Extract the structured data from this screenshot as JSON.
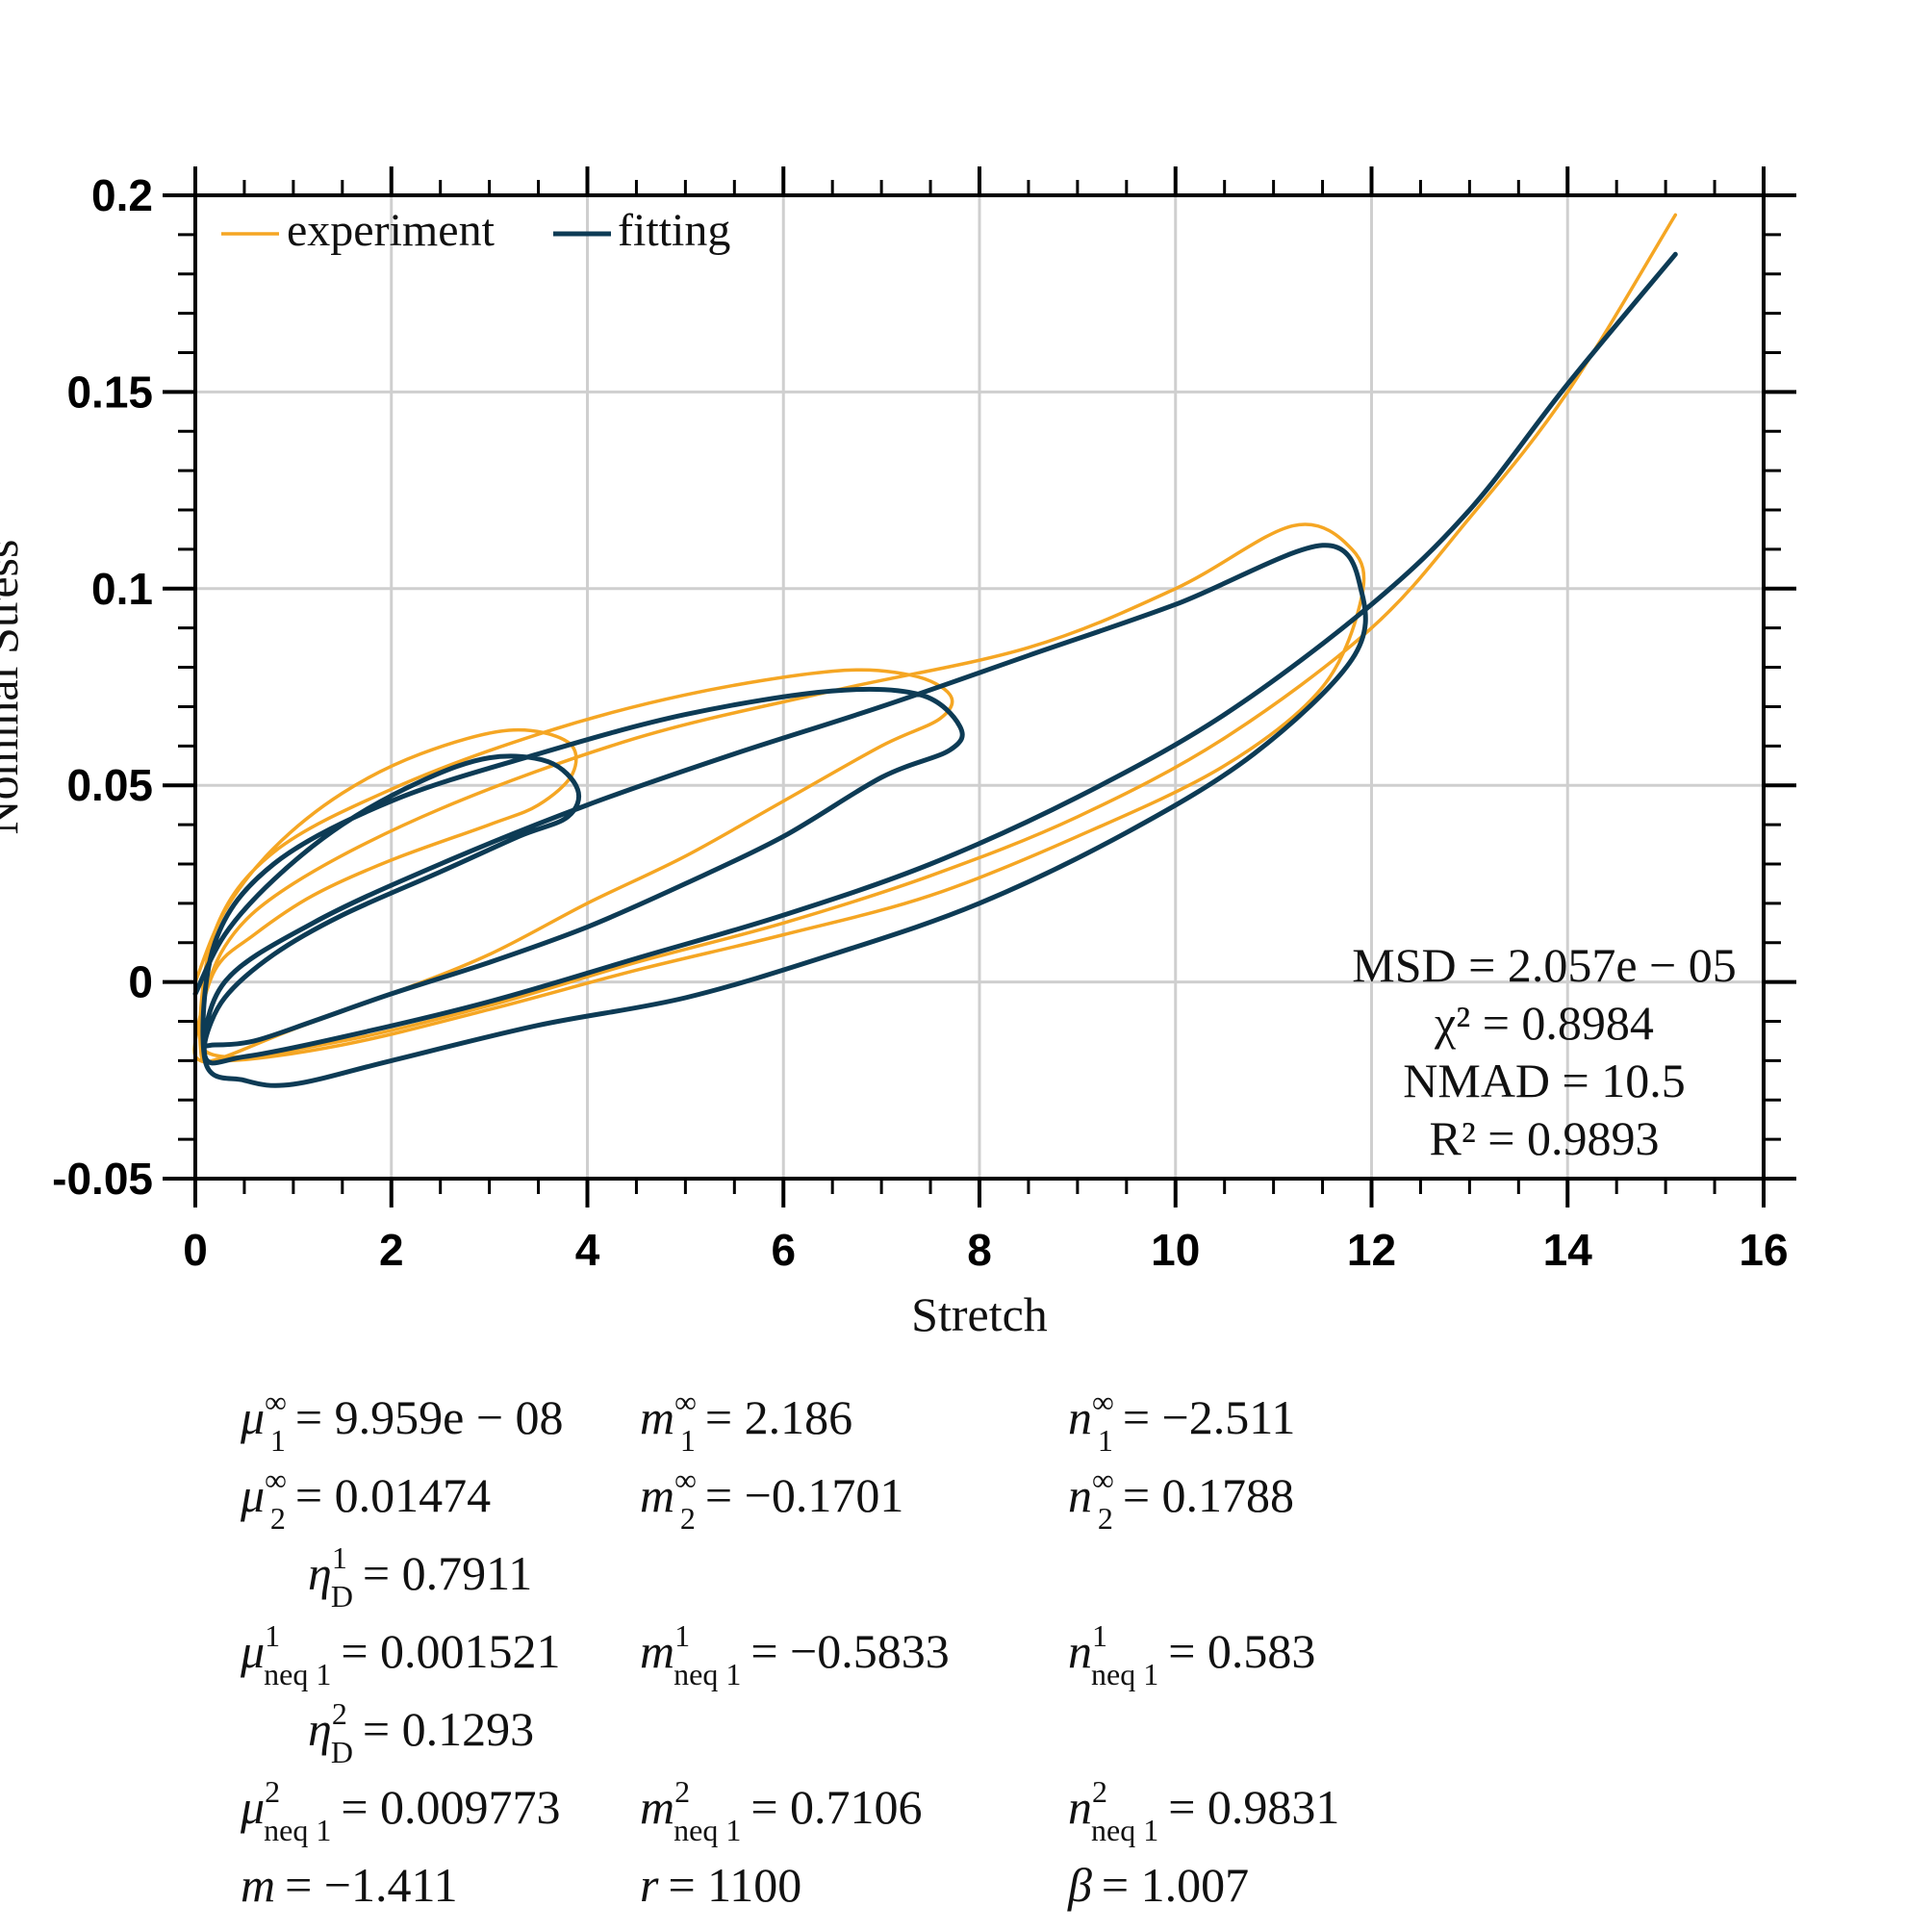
{
  "chart_data": {
    "type": "line",
    "title": "",
    "xlabel": "Stretch",
    "ylabel": "Nominal Stress",
    "xlim": [
      0,
      16
    ],
    "ylim": [
      -0.05,
      0.2
    ],
    "xticks": [
      "0",
      "2",
      "4",
      "6",
      "8",
      "10",
      "12",
      "14",
      "16"
    ],
    "yticks": [
      "-0.05",
      "0",
      "0.05",
      "0.1",
      "0.15",
      "0.2"
    ],
    "grid": true,
    "legend_placement": "top-left",
    "series": [
      {
        "name": "experiment",
        "color": "#F5A623",
        "x": [
          0.0,
          0.3,
          0.8,
          1.5,
          2.3,
          3.2,
          3.8,
          3.85,
          3.5,
          3.0,
          2.0,
          1.2,
          0.6,
          0.2,
          0.0,
          0.05,
          0.3,
          1.0,
          2.0,
          3.0,
          4.0,
          5.0,
          6.0,
          7.0,
          7.6,
          7.7,
          7.3,
          6.5,
          5.0,
          3.5,
          2.0,
          0.8,
          0.2,
          0.05,
          0.3,
          1.5,
          3.0,
          4.5,
          6.0,
          7.5,
          9.0,
          10.5,
          11.5,
          11.9,
          11.8,
          11.2,
          10.0,
          8.5,
          6.5,
          4.5,
          2.5,
          1.0,
          0.3,
          0.05,
          0.3,
          1.5,
          3.0,
          4.5,
          6.0,
          7.5,
          9.0,
          10.5,
          12.0,
          13.0,
          14.0,
          15.1
        ],
        "y": [
          0.0,
          0.018,
          0.034,
          0.048,
          0.058,
          0.064,
          0.061,
          0.053,
          0.045,
          0.04,
          0.031,
          0.022,
          0.012,
          0.003,
          -0.015,
          -0.02,
          -0.019,
          -0.012,
          -0.003,
          0.007,
          0.02,
          0.032,
          0.046,
          0.06,
          0.067,
          0.073,
          0.078,
          0.079,
          0.073,
          0.063,
          0.049,
          0.033,
          0.013,
          -0.016,
          -0.02,
          -0.016,
          -0.007,
          0.003,
          0.012,
          0.022,
          0.037,
          0.055,
          0.075,
          0.098,
          0.11,
          0.116,
          0.1,
          0.085,
          0.074,
          0.062,
          0.044,
          0.025,
          0.009,
          -0.012,
          -0.019,
          -0.015,
          -0.006,
          0.005,
          0.015,
          0.027,
          0.042,
          0.062,
          0.09,
          0.118,
          0.15,
          0.195
        ]
      },
      {
        "name": "fitting",
        "color": "#0D3B55",
        "x": [
          0.0,
          0.3,
          0.8,
          1.5,
          2.3,
          3.0,
          3.6,
          3.9,
          3.8,
          3.3,
          2.5,
          1.5,
          0.8,
          0.3,
          0.1,
          0.2,
          0.6,
          1.2,
          2.0,
          3.0,
          4.0,
          5.0,
          6.0,
          7.0,
          7.7,
          7.8,
          7.4,
          6.5,
          5.0,
          3.5,
          2.0,
          0.8,
          0.2,
          0.1,
          0.5,
          1.0,
          2.0,
          3.5,
          5.0,
          6.5,
          8.0,
          9.5,
          10.8,
          11.8,
          11.9,
          11.5,
          10.0,
          8.5,
          7.0,
          5.5,
          4.0,
          2.5,
          1.2,
          0.3,
          0.1,
          0.5,
          1.5,
          3.0,
          4.5,
          6.0,
          7.5,
          9.0,
          10.5,
          12.0,
          13.0,
          14.0,
          15.1
        ],
        "y": [
          -0.003,
          0.012,
          0.026,
          0.04,
          0.051,
          0.057,
          0.056,
          0.049,
          0.042,
          0.037,
          0.028,
          0.017,
          0.007,
          -0.004,
          -0.015,
          -0.016,
          -0.015,
          -0.01,
          -0.003,
          0.005,
          0.014,
          0.025,
          0.037,
          0.052,
          0.059,
          0.065,
          0.073,
          0.074,
          0.068,
          0.058,
          0.046,
          0.03,
          0.01,
          -0.02,
          -0.025,
          -0.026,
          -0.02,
          -0.011,
          -0.004,
          0.007,
          0.02,
          0.038,
          0.058,
          0.082,
          0.099,
          0.111,
          0.096,
          0.083,
          0.07,
          0.058,
          0.045,
          0.03,
          0.015,
          0.0,
          -0.019,
          -0.019,
          -0.014,
          -0.005,
          0.006,
          0.017,
          0.03,
          0.047,
          0.068,
          0.096,
          0.12,
          0.152,
          0.185
        ]
      }
    ],
    "annotations": [
      "MSD = 2.057e − 05",
      "χ² = 0.8984",
      "NMAD = 10.5",
      "R² = 0.9893"
    ]
  },
  "params": [
    [
      {
        "sym": "μ",
        "sup": "∞",
        "sub": "1",
        "val": "= 9.959e − 08"
      },
      {
        "sym": "m",
        "sup": "∞",
        "sub": "1",
        "val": "= 2.186"
      },
      {
        "sym": "n",
        "sup": "∞",
        "sub": "1",
        "val": "= −2.511"
      }
    ],
    [
      {
        "sym": "μ",
        "sup": "∞",
        "sub": "2",
        "val": "= 0.01474"
      },
      {
        "sym": "m",
        "sup": "∞",
        "sub": "2",
        "val": "= −0.1701"
      },
      {
        "sym": "n",
        "sup": "∞",
        "sub": "2",
        "val": "= 0.1788"
      }
    ],
    [
      {
        "sym": "η",
        "sup": "1",
        "sub": "D",
        "val": "= 0.7911"
      }
    ],
    [
      {
        "sym": "μ",
        "sup": "1",
        "sub": "neq 1",
        "val": "= 0.001521"
      },
      {
        "sym": "m",
        "sup": "1",
        "sub": "neq 1",
        "val": "= −0.5833"
      },
      {
        "sym": "n",
        "sup": "1",
        "sub": "neq 1",
        "val": "= 0.583"
      }
    ],
    [
      {
        "sym": "η",
        "sup": "2",
        "sub": "D",
        "val": "= 0.1293"
      }
    ],
    [
      {
        "sym": "μ",
        "sup": "2",
        "sub": "neq 1",
        "val": "= 0.009773"
      },
      {
        "sym": "m",
        "sup": "2",
        "sub": "neq 1",
        "val": "= 0.7106"
      },
      {
        "sym": "n",
        "sup": "2",
        "sub": "neq 1",
        "val": "= 0.9831"
      }
    ],
    [
      {
        "sym": "m",
        "sup": "",
        "sub": "",
        "val": "= −1.411"
      },
      {
        "sym": "r",
        "sup": "",
        "sub": "",
        "val": "= 1100"
      },
      {
        "sym": "β",
        "sup": "",
        "sub": "",
        "val": "= 1.007"
      }
    ]
  ]
}
